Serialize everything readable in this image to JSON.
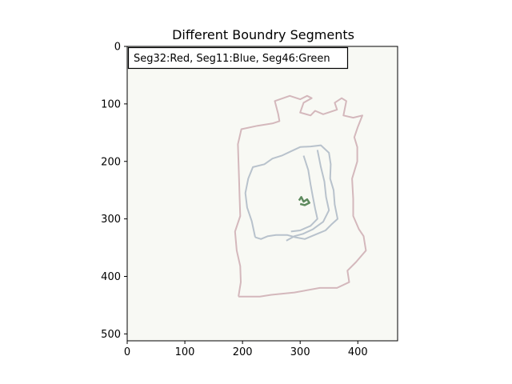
{
  "chart_data": {
    "type": "image",
    "title": "Different Boundry Segments",
    "annotation": "Seg32:Red, Seg11:Blue, Seg46:Green",
    "xlim": [
      0,
      469
    ],
    "ylim": [
      512,
      0
    ],
    "xticks": [
      0,
      100,
      200,
      300,
      400
    ],
    "yticks": [
      0,
      100,
      200,
      300,
      400,
      500
    ],
    "background_color": "#f8f9f4",
    "series": [
      {
        "color": "#d4b8bc",
        "points": [
          [
            193,
            435
          ],
          [
            197,
            410
          ],
          [
            196,
            382
          ],
          [
            190,
            355
          ],
          [
            187,
            322
          ],
          [
            196,
            295
          ],
          [
            195,
            262
          ],
          [
            194,
            230
          ],
          [
            193,
            200
          ],
          [
            192,
            170
          ],
          [
            198,
            144
          ],
          [
            226,
            138
          ],
          [
            252,
            134
          ],
          [
            264,
            130
          ],
          [
            262,
            118
          ],
          [
            256,
            95
          ],
          [
            282,
            86
          ],
          [
            300,
            92
          ],
          [
            312,
            86
          ],
          [
            320,
            90
          ],
          [
            306,
            98
          ],
          [
            300,
            115
          ],
          [
            318,
            120
          ],
          [
            326,
            112
          ],
          [
            340,
            118
          ],
          [
            352,
            114
          ],
          [
            364,
            110
          ],
          [
            360,
            98
          ],
          [
            372,
            90
          ],
          [
            380,
            95
          ],
          [
            375,
            120
          ],
          [
            392,
            124
          ],
          [
            408,
            120
          ],
          [
            400,
            140
          ],
          [
            394,
            158
          ],
          [
            399,
            175
          ],
          [
            399,
            200
          ],
          [
            390,
            230
          ],
          [
            392,
            265
          ],
          [
            392,
            295
          ],
          [
            402,
            318
          ],
          [
            410,
            330
          ],
          [
            414,
            355
          ],
          [
            397,
            375
          ],
          [
            382,
            390
          ],
          [
            385,
            410
          ],
          [
            364,
            420
          ],
          [
            334,
            420
          ],
          [
            290,
            428
          ],
          [
            250,
            432
          ],
          [
            230,
            435
          ],
          [
            193,
            435
          ]
        ]
      },
      {
        "color": "#b8c2cc",
        "points": [
          [
            222,
            332
          ],
          [
            216,
            304
          ],
          [
            208,
            280
          ],
          [
            205,
            255
          ],
          [
            210,
            230
          ],
          [
            218,
            210
          ],
          [
            238,
            205
          ],
          [
            252,
            195
          ],
          [
            268,
            190
          ],
          [
            285,
            182
          ],
          [
            300,
            175
          ],
          [
            318,
            174
          ],
          [
            336,
            172
          ],
          [
            350,
            185
          ],
          [
            353,
            205
          ],
          [
            352,
            230
          ],
          [
            358,
            250
          ],
          [
            360,
            275
          ],
          [
            365,
            300
          ],
          [
            354,
            310
          ],
          [
            344,
            320
          ],
          [
            332,
            325
          ],
          [
            320,
            330
          ],
          [
            308,
            335
          ],
          [
            292,
            332
          ],
          [
            278,
            328
          ],
          [
            258,
            328
          ],
          [
            244,
            330
          ],
          [
            232,
            335
          ],
          [
            222,
            332
          ]
        ]
      },
      {
        "color": "#b8c2cc",
        "points": [
          [
            306,
            190
          ],
          [
            314,
            215
          ],
          [
            318,
            240
          ],
          [
            322,
            262
          ],
          [
            326,
            282
          ],
          [
            330,
            300
          ],
          [
            318,
            312
          ],
          [
            300,
            320
          ],
          [
            284,
            322
          ]
        ]
      },
      {
        "color": "#b8c2cc",
        "points": [
          [
            330,
            180
          ],
          [
            336,
            210
          ],
          [
            342,
            235
          ],
          [
            345,
            262
          ],
          [
            350,
            285
          ],
          [
            340,
            305
          ],
          [
            322,
            318
          ],
          [
            305,
            326
          ],
          [
            290,
            330
          ],
          [
            276,
            338
          ]
        ]
      },
      {
        "color": "#5e8a5e",
        "points": [
          [
            298,
            268
          ],
          [
            302,
            262
          ],
          [
            306,
            270
          ],
          [
            312,
            266
          ],
          [
            316,
            272
          ],
          [
            308,
            276
          ],
          [
            300,
            274
          ]
        ]
      }
    ]
  }
}
